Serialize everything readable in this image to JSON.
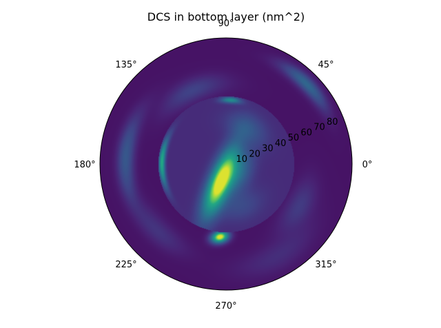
{
  "chart_data": {
    "type": "heatmap",
    "projection": "polar",
    "title": "DCS in bottom layer (nm^2)",
    "colormap": "viridis",
    "theta_ticks": [
      "0°",
      "45°",
      "90°",
      "135°",
      "180°",
      "225°",
      "270°",
      "315°"
    ],
    "theta_tick_values_deg": [
      0,
      45,
      90,
      135,
      180,
      225,
      270,
      315
    ],
    "r_ticks": [
      "10",
      "20",
      "30",
      "40",
      "50",
      "60",
      "70",
      "80"
    ],
    "r_tick_values": [
      10,
      20,
      30,
      40,
      50,
      60,
      70,
      80
    ],
    "r_label_angle_deg": 22.5,
    "rlim": [
      0,
      90
    ],
    "theta_grid": false,
    "r_grid": false,
    "inner_disk_radius": 48.5,
    "features": [
      {
        "name": "central elongated peak",
        "r_center": 13,
        "theta_center_deg": 251,
        "orientation_deg": 68,
        "level": 0.9
      },
      {
        "name": "inner disk rim crescent (left)",
        "r": 46,
        "theta_range_deg": [
          150,
          205
        ],
        "level": 0.6
      },
      {
        "name": "inner disk rim crescent (top)",
        "r": 46,
        "theta_range_deg": [
          78,
          95
        ],
        "level": 0.5
      },
      {
        "name": "outer lobe (lower)",
        "r": 52,
        "theta_deg": 265,
        "level": 0.9
      },
      {
        "name": "outer band (upper right)",
        "r": 80,
        "theta_range_deg": [
          28,
          62
        ],
        "level": 0.35
      },
      {
        "name": "outer band (left)",
        "r": 72,
        "theta_range_deg": [
          150,
          205
        ],
        "level": 0.3
      }
    ]
  }
}
